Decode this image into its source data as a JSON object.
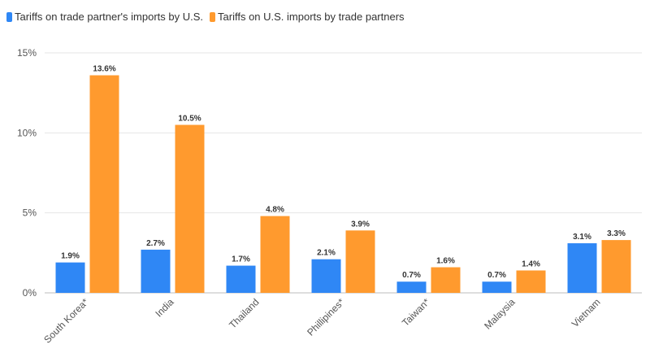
{
  "chart_data": {
    "type": "bar",
    "categories": [
      "South Korea*",
      "India",
      "Thailand",
      "Phillipines*",
      "Taiwan*",
      "Malaysia",
      "Vietnam"
    ],
    "series": [
      {
        "name": "Tariffs on trade partner's imports by U.S.",
        "color": "#2f87f5",
        "values": [
          1.9,
          2.7,
          1.7,
          2.1,
          0.7,
          0.7,
          3.1
        ],
        "labels": [
          "1.9%",
          "2.7%",
          "1.7%",
          "2.1%",
          "0.7%",
          "0.7%",
          "3.1%"
        ]
      },
      {
        "name": "Tariffs on U.S. imports by trade partners",
        "color": "#ff9a2e",
        "values": [
          13.6,
          10.5,
          4.8,
          3.9,
          1.6,
          1.4,
          3.3
        ],
        "labels": [
          "13.6%",
          "10.5%",
          "4.8%",
          "3.9%",
          "1.6%",
          "1.4%",
          "3.3%"
        ]
      }
    ],
    "ylim": [
      0,
      15
    ],
    "yticks": [
      0,
      5,
      10,
      15
    ],
    "ytick_labels": [
      "0%",
      "5%",
      "10%",
      "15%"
    ],
    "grid": true,
    "legend": "top-left"
  }
}
